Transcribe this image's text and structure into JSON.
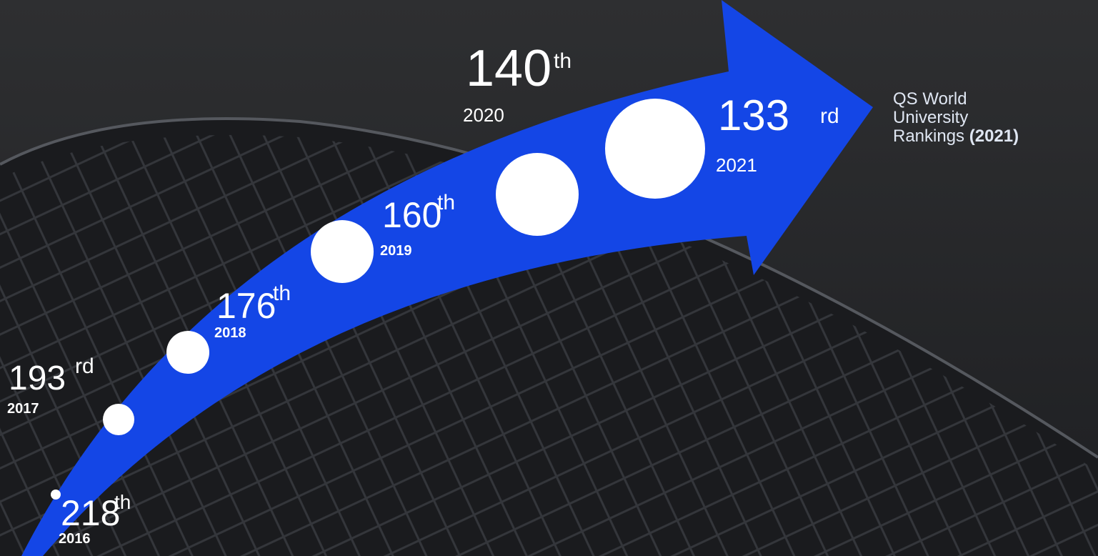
{
  "milestones": [
    {
      "rank": "218",
      "suffix": "th",
      "year": "2016"
    },
    {
      "rank": "193",
      "suffix": "rd",
      "year": "2017"
    },
    {
      "rank": "176",
      "suffix": "th",
      "year": "2018"
    },
    {
      "rank": "160",
      "suffix": "th",
      "year": "2019"
    },
    {
      "rank": "140",
      "suffix": "th",
      "year": "2020"
    },
    {
      "rank": "133",
      "suffix": "rd",
      "year": "2021"
    }
  ],
  "caption": {
    "line1": "QS World",
    "line2": "University",
    "line3": "Rankings",
    "year": "(2021)"
  }
}
